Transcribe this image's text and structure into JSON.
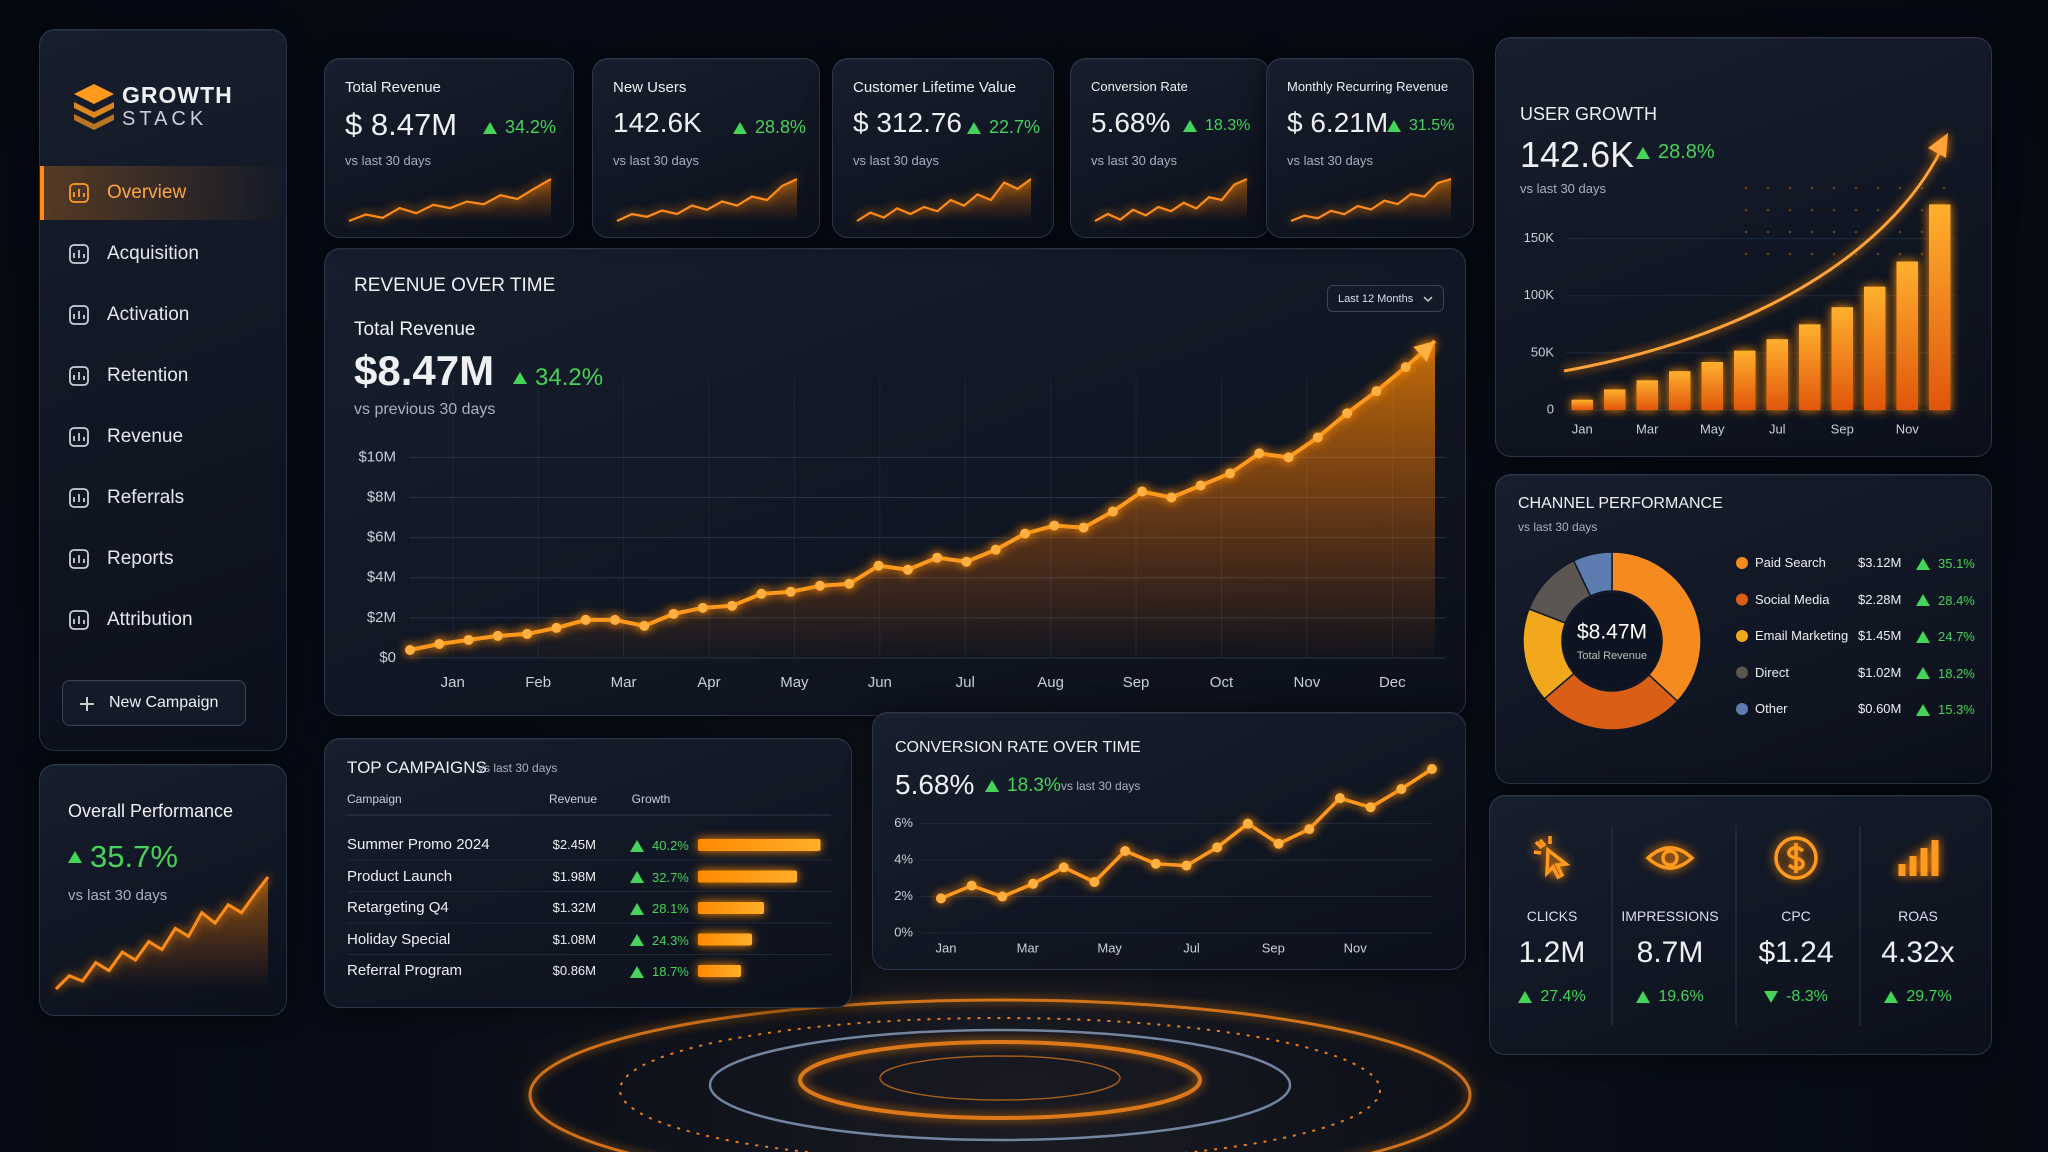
{
  "sidebar": {
    "brand": [
      "GROWTH",
      "STACK"
    ],
    "nav": [
      "Overview",
      "Acquisition",
      "Activation",
      "Retention",
      "Revenue",
      "Referrals",
      "Reports",
      "Attribution"
    ],
    "button": "New Campaign"
  },
  "overall": {
    "title": "Overall Performance",
    "value": "35.7%",
    "note": "vs last 30 days",
    "sparkline": [
      1,
      2,
      1.6,
      3,
      2.4,
      3.8,
      3.2,
      4.6,
      4,
      5.6,
      5,
      6.8,
      6,
      7.4,
      6.8,
      8.2,
      9.5
    ]
  },
  "kpis": [
    {
      "label": "Total Revenue",
      "value": "$ 8.47M",
      "change": "34.2%",
      "note": "vs last 30 days",
      "sparkline": [
        3,
        4,
        3.5,
        5,
        4.2,
        5.5,
        5,
        6,
        5.6,
        7,
        6.4,
        8,
        9.5
      ]
    },
    {
      "label": "New Users",
      "value": "142.6K",
      "change": "28.8%",
      "note": "vs last 30 days",
      "sparkline": [
        3,
        4,
        3.6,
        4.5,
        4,
        5.2,
        4.6,
        5.8,
        5.2,
        6.5,
        6,
        8,
        9
      ]
    },
    {
      "label": "Customer Lifetime Value",
      "value": "$ 312.76",
      "change": "22.7%",
      "note": "vs last 30 days",
      "sparkline": [
        3,
        4.2,
        3.5,
        4.8,
        4,
        5,
        4.4,
        6,
        5.2,
        6.8,
        6,
        8.5,
        7.6,
        9
      ]
    },
    {
      "label": "Conversion Rate",
      "value": "5.68%",
      "change": "18.3%",
      "note": "vs last 30 days",
      "sparkline": [
        3,
        4,
        3.2,
        4.6,
        3.8,
        5,
        4.4,
        5.6,
        4.8,
        6.4,
        6,
        8.2,
        9
      ]
    },
    {
      "label": "Monthly Recurring Revenue",
      "value": "$ 6.21M",
      "change": "31.5%",
      "note": "vs last 30 days",
      "sparkline": [
        3,
        3.8,
        3.4,
        4.5,
        4,
        5.2,
        4.7,
        6,
        5.5,
        7,
        6.6,
        8.6,
        9.2
      ]
    }
  ],
  "revenue": {
    "title": "REVENUE OVER TIME",
    "range": "Last 12 Months",
    "label": "Total Revenue",
    "value": "$8.47M",
    "change": "34.2%",
    "note": "vs previous 30 days",
    "chart": {
      "type": "line",
      "x_labels": [
        "Jan",
        "Feb",
        "Mar",
        "Apr",
        "May",
        "Jun",
        "Jul",
        "Aug",
        "Sep",
        "Oct",
        "Nov",
        "Dec"
      ],
      "values": [
        0.4,
        0.7,
        0.9,
        1.1,
        1.2,
        1.5,
        1.9,
        1.9,
        1.6,
        2.2,
        2.5,
        2.6,
        3.2,
        3.3,
        3.6,
        3.7,
        4.6,
        4.4,
        5.0,
        4.8,
        5.4,
        6.2,
        6.6,
        6.5,
        7.3,
        8.3,
        8.0,
        8.6,
        9.2,
        10.2,
        10.0,
        11.0,
        12.2,
        13.3,
        14.5,
        15.8
      ],
      "ylim": [
        0,
        16
      ],
      "yticks": [
        {
          "value": 0,
          "label": "$0"
        },
        {
          "value": 2,
          "label": "$2M"
        },
        {
          "value": 4,
          "label": "$4M"
        },
        {
          "value": 6,
          "label": "$6M"
        },
        {
          "value": 8,
          "label": "$8M"
        },
        {
          "value": 10,
          "label": "$10M"
        }
      ],
      "grid": true
    }
  },
  "user_growth": {
    "title": "USER GROWTH",
    "value": "142.6K",
    "change": "28.8%",
    "note": "vs last 30 days",
    "chart": {
      "type": "bar",
      "categories": [
        "Jan",
        null,
        "Mar",
        null,
        "May",
        null,
        "Jul",
        null,
        "Sep",
        null,
        "Nov",
        null
      ],
      "values": [
        9,
        18,
        26,
        34,
        42,
        52,
        62,
        75,
        90,
        108,
        130,
        180
      ],
      "ylim": [
        0,
        190
      ],
      "yticks": [
        0,
        {
          "value": 50,
          "label": "50K"
        },
        {
          "value": 100,
          "label": "100K"
        },
        {
          "value": 150,
          "label": "150K"
        }
      ]
    }
  },
  "channels": {
    "title": "CHANNEL PERFORMANCE",
    "note": "vs last 30 days",
    "center_value": "$8.47M",
    "center_label": "Total Revenue",
    "chart": {
      "type": "pie",
      "categories": [
        "Paid Search",
        "Social Media",
        "Email Marketing",
        "Direct",
        "Other"
      ],
      "values": [
        3.12,
        2.28,
        1.45,
        1.02,
        0.6
      ],
      "value_labels": [
        "$3.12M",
        "$2.28M",
        "$1.45M",
        "$1.02M",
        "$0.60M"
      ],
      "changes": [
        "35.1%",
        "28.4%",
        "24.7%",
        "18.2%",
        "15.3%"
      ],
      "colors": [
        "#f58a1f",
        "#d95f17",
        "#f2a81d",
        "#5b5652",
        "#5d7db0"
      ]
    }
  },
  "campaigns": {
    "title": "TOP CAMPAIGNS",
    "note": "vs last 30 days",
    "headers": [
      "Campaign",
      "Revenue",
      "Growth"
    ],
    "chart": {
      "type": "bar",
      "categories": [
        "Summer Promo 2024",
        "Product Launch",
        "Retargeting Q4",
        "Holiday Special",
        "Referral Program"
      ],
      "values": [
        2.45,
        1.98,
        1.32,
        1.08,
        0.86
      ],
      "value_labels": [
        "$2.45M",
        "$1.98M",
        "$1.32M",
        "$1.08M",
        "$0.86M"
      ],
      "changes": [
        "40.2%",
        "32.7%",
        "28.1%",
        "24.3%",
        "18.7%"
      ],
      "xlim": [
        0,
        2.6
      ]
    }
  },
  "conversion": {
    "title": "CONVERSION RATE OVER TIME",
    "value": "5.68%",
    "change": "18.3%",
    "note": "vs last 30 days",
    "chart": {
      "type": "line",
      "x_labels": [
        "Jan",
        "Mar",
        "May",
        "Jul",
        "Sep",
        "Nov"
      ],
      "values": [
        1.9,
        2.6,
        2.0,
        2.7,
        3.6,
        2.8,
        4.5,
        3.8,
        3.7,
        4.7,
        6.0,
        4.9,
        5.7,
        7.4,
        6.9,
        7.9,
        9.0
      ],
      "ylim": [
        0,
        9
      ],
      "yticks": [
        {
          "value": 0,
          "label": "0%"
        },
        {
          "value": 2,
          "label": "2%"
        },
        {
          "value": 4,
          "label": "4%"
        },
        {
          "value": 6,
          "label": "6%"
        }
      ]
    }
  },
  "metrics": [
    {
      "label": "CLICKS",
      "value": "1.2M",
      "change": "27.4%",
      "direction": "up"
    },
    {
      "label": "IMPRESSIONS",
      "value": "8.7M",
      "change": "19.6%",
      "direction": "up"
    },
    {
      "label": "CPC",
      "value": "$1.24",
      "change": "-8.3%",
      "direction": "down"
    },
    {
      "label": "ROAS",
      "value": "4.32x",
      "change": "29.7%",
      "direction": "up"
    }
  ]
}
